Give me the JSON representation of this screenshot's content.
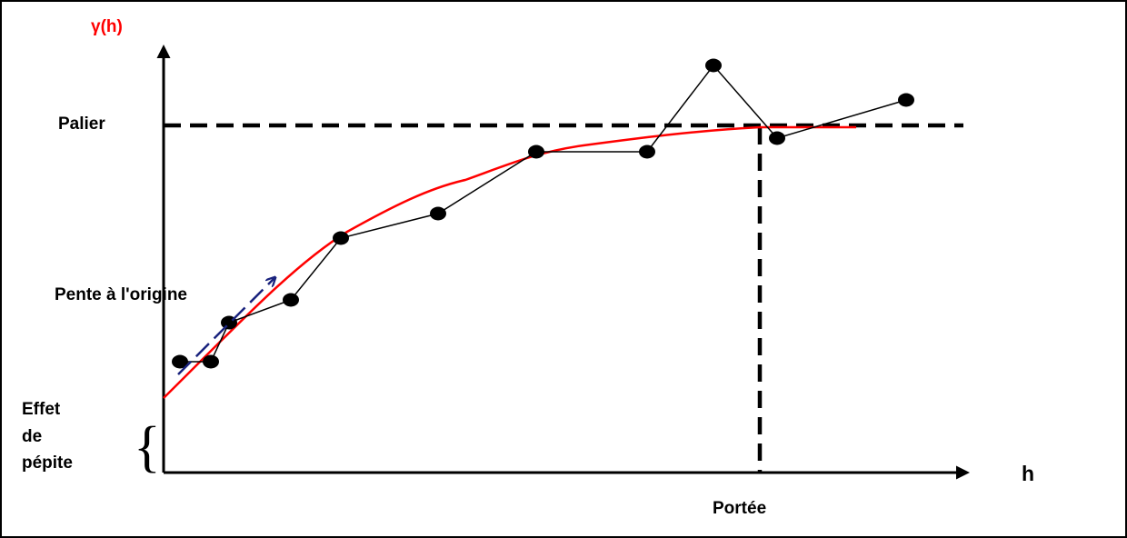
{
  "labels": {
    "y_axis": "γ(h)",
    "x_axis": "h",
    "sill": "Palier",
    "slope": "Pente à l'origine",
    "nugget_line1": "Effet",
    "nugget_line2": "de",
    "nugget_line3": "pépite",
    "range": "Portée"
  },
  "colors": {
    "axis": "#000000",
    "model_curve": "#ff0000",
    "experimental": "#000000",
    "slope_arrow": "#1a237e",
    "y_label": "#ff0000"
  }
}
